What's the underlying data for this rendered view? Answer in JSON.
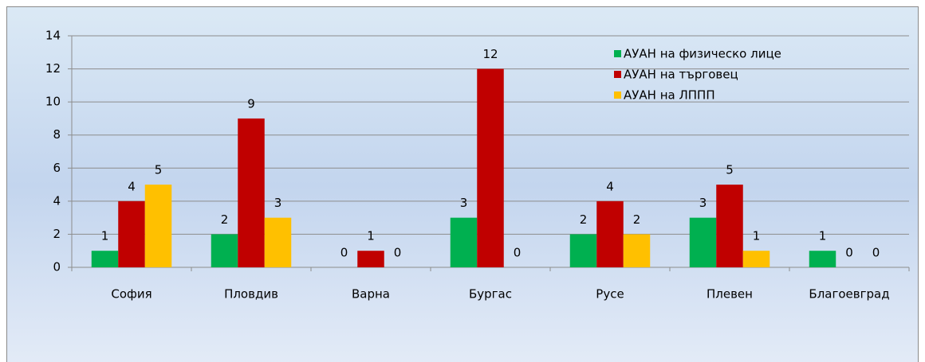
{
  "chart_data": {
    "type": "bar",
    "categories": [
      "София",
      "Пловдив",
      "Варна",
      "Бургас",
      "Русе",
      "Плевен",
      "Благоевград"
    ],
    "series": [
      {
        "name": "АУАН на физическо лице",
        "color": "#00b050",
        "values": [
          1,
          2,
          0,
          3,
          2,
          3,
          1
        ]
      },
      {
        "name": "АУАН на търговец",
        "color": "#c00000",
        "values": [
          4,
          9,
          1,
          12,
          4,
          5,
          0
        ]
      },
      {
        "name": "АУАН на ЛППП",
        "color": "#ffc000",
        "values": [
          5,
          3,
          0,
          0,
          2,
          1,
          0
        ]
      }
    ],
    "ylim": [
      0,
      14
    ],
    "yticks": [
      0,
      2,
      4,
      6,
      8,
      10,
      12,
      14
    ],
    "grid": true,
    "legend": "top-right"
  }
}
